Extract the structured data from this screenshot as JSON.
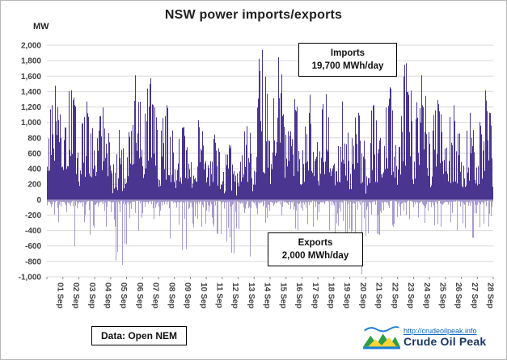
{
  "figure": {
    "title": "NSW power imports/exports",
    "y_axis_unit": "MW"
  },
  "annotations": {
    "imports": {
      "line1": "Imports",
      "line2": "19,700 MWh/day"
    },
    "exports": {
      "line1": "Exports",
      "line2": "2,000 MWh/day"
    }
  },
  "source": {
    "label": "Data: Open NEM"
  },
  "logo": {
    "url": "http://crudeoilpeak.info",
    "name": "Crude Oil Peak"
  },
  "colors": {
    "imports": "#4a3590",
    "exports": "#a79bcb",
    "grid": "#d9d9d9",
    "zero_axis": "#808080",
    "tick_text": "#3f3f3f"
  },
  "chart_data": {
    "type": "bar",
    "title": "NSW power imports/exports",
    "xlabel": "",
    "ylabel": "MW",
    "ylim": [
      -1000,
      2000
    ],
    "grid": true,
    "ytick_values": [
      2000,
      1800,
      1600,
      1400,
      1200,
      1000,
      800,
      600,
      400,
      200,
      0,
      -200,
      -400,
      -600,
      -800,
      -1000
    ],
    "ytick_labels": [
      "2,000",
      "1,800",
      "1,600",
      "1,400",
      "1,200",
      "1,000",
      "800",
      "600",
      "400",
      "200",
      "0",
      "-200",
      "-400",
      "-600",
      "-800",
      "-1,000"
    ],
    "categories": [
      "01 Sep",
      "02 Sep",
      "03 Sep",
      "04 Sep",
      "05 Sep",
      "06 Sep",
      "07 Sep",
      "08 Sep",
      "09 Sep",
      "10 Sep",
      "11 Sep",
      "12 Sep",
      "13 Sep",
      "14 Sep",
      "15 Sep",
      "16 Sep",
      "17 Sep",
      "18 Sep",
      "19 Sep",
      "20 Sep",
      "21 Sep",
      "22 Sep",
      "23 Sep",
      "24 Sep",
      "25 Sep",
      "26 Sep",
      "27 Sep",
      "28 Sep"
    ],
    "series": [
      {
        "name": "Imports",
        "unit": "MW",
        "daily_peak_mw": [
          1520,
          1460,
          1310,
          1230,
          930,
          1660,
          1620,
          1260,
          960,
          1060,
          870,
          720,
          980,
          2000,
          1900,
          1340,
          1400,
          1410,
          1310,
          1160,
          1260,
          1500,
          1820,
          1660,
          1330,
          1260,
          1160,
          1460
        ],
        "daily_base_mw": [
          500,
          350,
          300,
          280,
          120,
          420,
          480,
          260,
          180,
          220,
          140,
          70,
          130,
          350,
          450,
          280,
          320,
          320,
          230,
          180,
          220,
          320,
          420,
          380,
          280,
          230,
          190,
          280
        ],
        "average_label": "19,700 MWh/day"
      },
      {
        "name": "Exports",
        "unit": "MW",
        "daily_peak_mw": [
          -300,
          -620,
          -470,
          -360,
          -870,
          -420,
          -260,
          -520,
          -660,
          -360,
          -460,
          -720,
          -760,
          -310,
          -210,
          -410,
          -360,
          -410,
          -510,
          -1000,
          -460,
          -360,
          -260,
          -310,
          -360,
          -410,
          -510,
          -360
        ],
        "average_label": "2,000 MWh/day"
      }
    ]
  }
}
